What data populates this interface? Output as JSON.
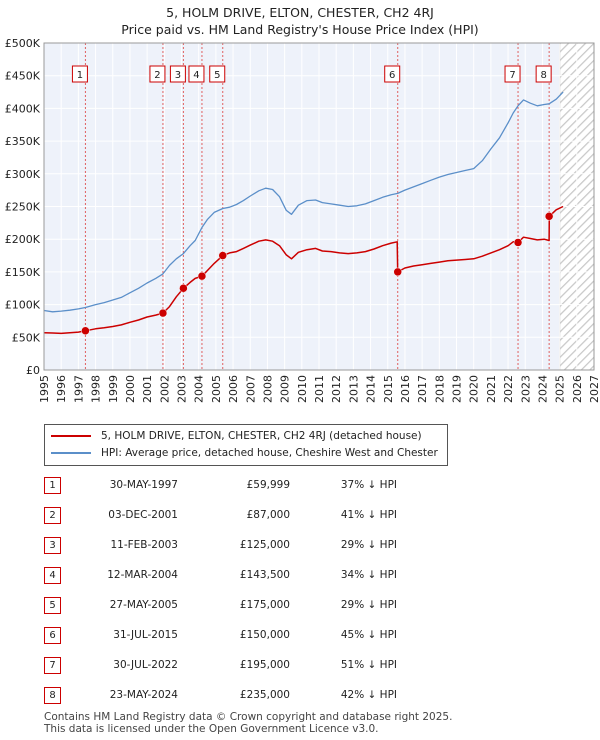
{
  "title_line1": "5, HOLM DRIVE, ELTON, CHESTER, CH2 4RJ",
  "title_line2": "Price paid vs. HM Land Registry's House Price Index (HPI)",
  "chart_data": {
    "type": "line",
    "xlim": [
      1995,
      2027
    ],
    "ylim": [
      0,
      500000
    ],
    "y_ticks": [
      0,
      50000,
      100000,
      150000,
      200000,
      250000,
      300000,
      350000,
      400000,
      450000,
      500000
    ],
    "y_tick_labels": [
      "£0",
      "£50K",
      "£100K",
      "£150K",
      "£200K",
      "£250K",
      "£300K",
      "£350K",
      "£400K",
      "£450K",
      "£500K"
    ],
    "x_ticks": [
      1995,
      1996,
      1997,
      1998,
      1999,
      2000,
      2001,
      2002,
      2003,
      2004,
      2005,
      2006,
      2007,
      2008,
      2009,
      2010,
      2011,
      2012,
      2013,
      2014,
      2015,
      2016,
      2017,
      2018,
      2019,
      2020,
      2021,
      2022,
      2023,
      2024,
      2025,
      2026,
      2027
    ],
    "x_tick_labels": [
      "1995",
      "1996",
      "1997",
      "1998",
      "1999",
      "2000",
      "2001",
      "2002",
      "2003",
      "2004",
      "2005",
      "2006",
      "2007",
      "2008",
      "2009",
      "2010",
      "2011",
      "2012",
      "2013",
      "2014",
      "2015",
      "2016",
      "2017",
      "2018",
      "2019",
      "2020",
      "2021",
      "2022",
      "2023",
      "2024",
      "2025",
      "2026",
      "2027"
    ],
    "forecast_start": 2025.0,
    "grid": true,
    "series": [
      {
        "name": "5, HOLM DRIVE, ELTON, CHESTER, CH2 4RJ (detached house)",
        "color": "#cc0000",
        "points": [
          [
            1995.0,
            57000
          ],
          [
            1995.5,
            56500
          ],
          [
            1996.0,
            56000
          ],
          [
            1996.5,
            57000
          ],
          [
            1997.0,
            58000
          ],
          [
            1997.41,
            59999
          ],
          [
            1998.0,
            63000
          ],
          [
            1998.5,
            64500
          ],
          [
            1999.0,
            66500
          ],
          [
            1999.5,
            69000
          ],
          [
            2000.0,
            73000
          ],
          [
            2000.5,
            76500
          ],
          [
            2001.0,
            81000
          ],
          [
            2001.5,
            84000
          ],
          [
            2001.92,
            87000
          ],
          [
            2002.3,
            97000
          ],
          [
            2002.7,
            112000
          ],
          [
            2003.11,
            125000
          ],
          [
            2003.5,
            134000
          ],
          [
            2003.8,
            140000
          ],
          [
            2004.19,
            143500
          ],
          [
            2004.5,
            152000
          ],
          [
            2004.9,
            163000
          ],
          [
            2005.4,
            175000
          ],
          [
            2005.8,
            179000
          ],
          [
            2006.2,
            181000
          ],
          [
            2006.6,
            186000
          ],
          [
            2007.0,
            191000
          ],
          [
            2007.5,
            197000
          ],
          [
            2007.9,
            199000
          ],
          [
            2008.3,
            197000
          ],
          [
            2008.7,
            190000
          ],
          [
            2009.1,
            176000
          ],
          [
            2009.4,
            170000
          ],
          [
            2009.8,
            180000
          ],
          [
            2010.3,
            184000
          ],
          [
            2010.8,
            186000
          ],
          [
            2011.2,
            182000
          ],
          [
            2011.7,
            181000
          ],
          [
            2012.2,
            179000
          ],
          [
            2012.7,
            178000
          ],
          [
            2013.2,
            179000
          ],
          [
            2013.7,
            181000
          ],
          [
            2014.2,
            185000
          ],
          [
            2014.7,
            190000
          ],
          [
            2015.2,
            194000
          ],
          [
            2015.55,
            196000
          ],
          [
            2015.58,
            150000
          ],
          [
            2016.0,
            156000
          ],
          [
            2016.5,
            159000
          ],
          [
            2017.0,
            161000
          ],
          [
            2017.5,
            163000
          ],
          [
            2018.0,
            165000
          ],
          [
            2018.5,
            167000
          ],
          [
            2019.0,
            168000
          ],
          [
            2019.5,
            169000
          ],
          [
            2020.0,
            170000
          ],
          [
            2020.5,
            174000
          ],
          [
            2021.0,
            179000
          ],
          [
            2021.5,
            184000
          ],
          [
            2022.0,
            190000
          ],
          [
            2022.3,
            196000
          ],
          [
            2022.58,
            195000
          ],
          [
            2022.9,
            203000
          ],
          [
            2023.3,
            201000
          ],
          [
            2023.7,
            199000
          ],
          [
            2024.1,
            200000
          ],
          [
            2024.39,
            198000
          ],
          [
            2024.4,
            235000
          ],
          [
            2024.8,
            245000
          ],
          [
            2025.2,
            250000
          ]
        ]
      },
      {
        "name": "HPI: Average price, detached house, Cheshire West and Chester",
        "color": "#5b8fc9",
        "points": [
          [
            1995.0,
            91000
          ],
          [
            1995.5,
            89000
          ],
          [
            1996.0,
            90000
          ],
          [
            1996.5,
            91500
          ],
          [
            1997.0,
            93500
          ],
          [
            1997.41,
            95500
          ],
          [
            1998.0,
            100000
          ],
          [
            1998.5,
            103000
          ],
          [
            1999.0,
            107000
          ],
          [
            1999.5,
            111000
          ],
          [
            2000.0,
            118000
          ],
          [
            2000.5,
            125000
          ],
          [
            2001.0,
            133000
          ],
          [
            2001.5,
            140000
          ],
          [
            2001.92,
            147000
          ],
          [
            2002.3,
            160000
          ],
          [
            2002.7,
            170000
          ],
          [
            2003.11,
            178000
          ],
          [
            2003.5,
            190000
          ],
          [
            2003.8,
            198000
          ],
          [
            2004.19,
            218000
          ],
          [
            2004.5,
            230000
          ],
          [
            2004.9,
            241000
          ],
          [
            2005.4,
            247000
          ],
          [
            2005.8,
            249000
          ],
          [
            2006.2,
            253000
          ],
          [
            2006.6,
            259000
          ],
          [
            2007.0,
            266000
          ],
          [
            2007.5,
            274000
          ],
          [
            2007.9,
            278000
          ],
          [
            2008.3,
            276000
          ],
          [
            2008.7,
            265000
          ],
          [
            2009.1,
            244000
          ],
          [
            2009.4,
            238000
          ],
          [
            2009.8,
            252000
          ],
          [
            2010.3,
            259000
          ],
          [
            2010.8,
            260000
          ],
          [
            2011.2,
            256000
          ],
          [
            2011.7,
            254000
          ],
          [
            2012.2,
            252000
          ],
          [
            2012.7,
            250000
          ],
          [
            2013.2,
            251000
          ],
          [
            2013.7,
            254000
          ],
          [
            2014.2,
            259000
          ],
          [
            2014.7,
            264000
          ],
          [
            2015.2,
            268000
          ],
          [
            2015.58,
            270000
          ],
          [
            2016.0,
            275000
          ],
          [
            2016.5,
            280000
          ],
          [
            2017.0,
            285000
          ],
          [
            2017.5,
            290000
          ],
          [
            2018.0,
            295000
          ],
          [
            2018.5,
            299000
          ],
          [
            2019.0,
            302000
          ],
          [
            2019.5,
            305000
          ],
          [
            2020.0,
            308000
          ],
          [
            2020.5,
            320000
          ],
          [
            2021.0,
            338000
          ],
          [
            2021.5,
            355000
          ],
          [
            2022.0,
            378000
          ],
          [
            2022.3,
            393000
          ],
          [
            2022.58,
            404000
          ],
          [
            2022.9,
            413000
          ],
          [
            2023.3,
            408000
          ],
          [
            2023.7,
            404000
          ],
          [
            2024.1,
            406000
          ],
          [
            2024.39,
            407000
          ],
          [
            2024.8,
            414000
          ],
          [
            2025.2,
            425000
          ]
        ]
      }
    ],
    "transactions": [
      {
        "label": "1",
        "date": "30-MAY-1997",
        "price": "£59,999",
        "hpi": "37% ↓ HPI",
        "x": 1997.41,
        "y": 59999
      },
      {
        "label": "2",
        "date": "03-DEC-2001",
        "price": "£87,000",
        "hpi": "41% ↓ HPI",
        "x": 2001.92,
        "y": 87000
      },
      {
        "label": "3",
        "date": "11-FEB-2003",
        "price": "£125,000",
        "hpi": "29% ↓ HPI",
        "x": 2003.11,
        "y": 125000
      },
      {
        "label": "4",
        "date": "12-MAR-2004",
        "price": "£143,500",
        "hpi": "34% ↓ HPI",
        "x": 2004.19,
        "y": 143500
      },
      {
        "label": "5",
        "date": "27-MAY-2005",
        "price": "£175,000",
        "hpi": "29% ↓ HPI",
        "x": 2005.4,
        "y": 175000
      },
      {
        "label": "6",
        "date": "31-JUL-2015",
        "price": "£150,000",
        "hpi": "45% ↓ HPI",
        "x": 2015.58,
        "y": 150000
      },
      {
        "label": "7",
        "date": "30-JUL-2022",
        "price": "£195,000",
        "hpi": "51% ↓ HPI",
        "x": 2022.58,
        "y": 195000
      },
      {
        "label": "8",
        "date": "23-MAY-2024",
        "price": "£235,000",
        "hpi": "42% ↓ HPI",
        "x": 2024.39,
        "y": 235000
      }
    ]
  },
  "legend": {
    "property_label": "5, HOLM DRIVE, ELTON, CHESTER, CH2 4RJ (detached house)",
    "hpi_label": "HPI: Average price, detached house, Cheshire West and Chester",
    "property_color": "#cc0000",
    "hpi_color": "#5b8fc9"
  },
  "footer": {
    "line1": "Contains HM Land Registry data © Crown copyright and database right 2025.",
    "line2": "This data is licensed under the Open Government Licence v3.0."
  }
}
